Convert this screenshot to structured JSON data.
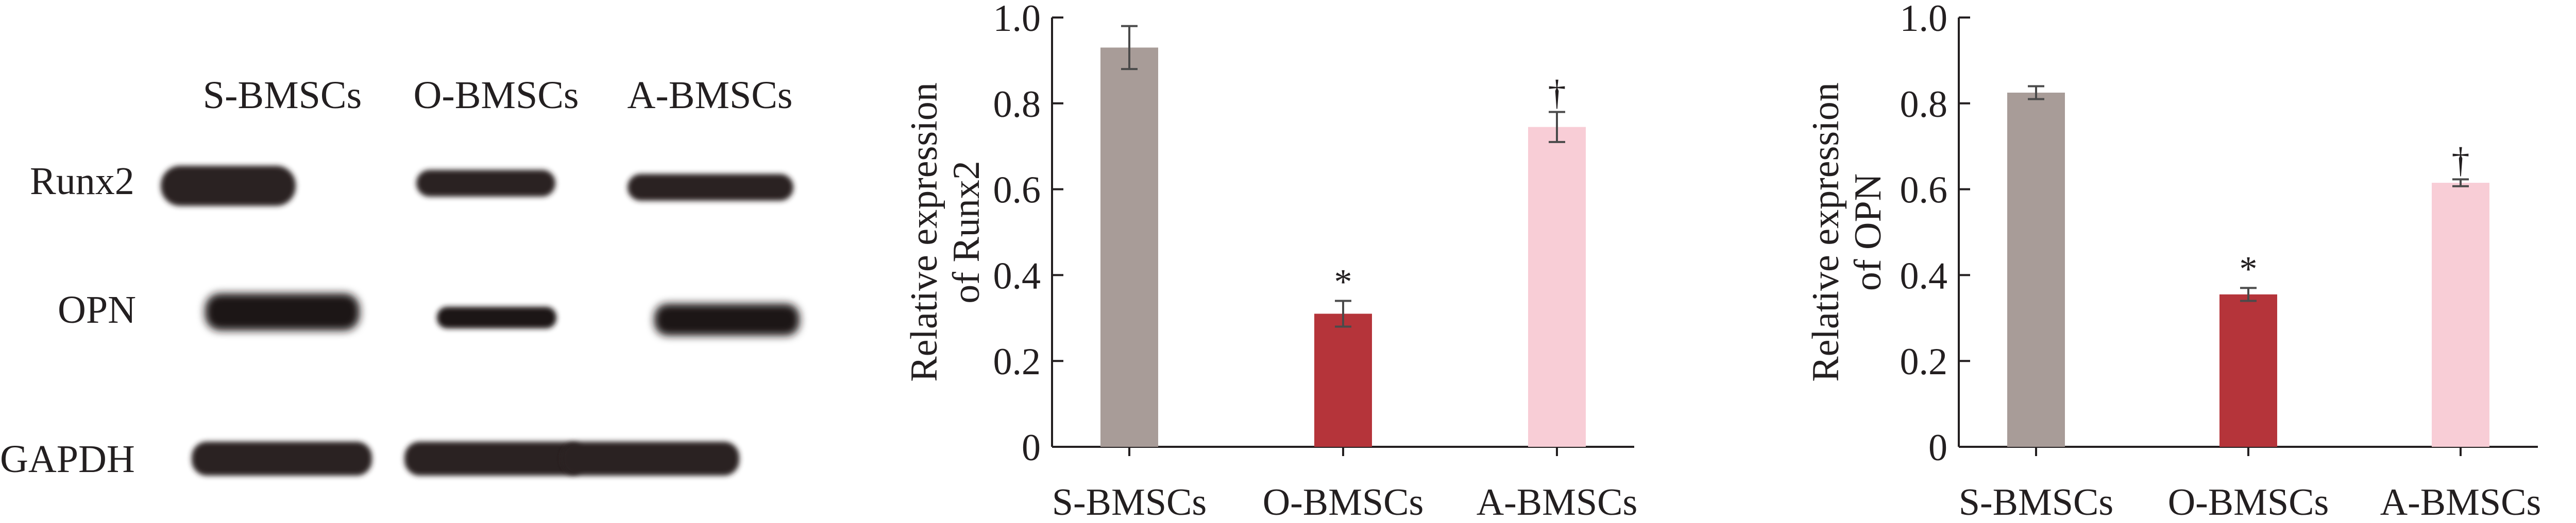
{
  "figure": {
    "blot": {
      "lane_labels": [
        "S-BMSCs",
        "O-BMSCs",
        "A-BMSCs"
      ],
      "row_labels": [
        "Runx2",
        "OPN",
        "GAPDH"
      ]
    },
    "colors": {
      "S-BMSCs": "#a89c98",
      "O-BMSCs": "#b5343a",
      "A-BMSCs": "#f8cdd6",
      "band": "#2a2422",
      "axis": "#231f20",
      "error_bar": "#4a4a4a"
    }
  },
  "chart_data": [
    {
      "type": "bar",
      "categories": [
        "S-BMSCs",
        "O-BMSCs",
        "A-BMSCs"
      ],
      "values": [
        0.93,
        0.31,
        0.745
      ],
      "errors": [
        0.05,
        0.03,
        0.035
      ],
      "annotations": [
        "",
        "*",
        "†"
      ],
      "title": "",
      "xlabel": "",
      "ylabel_lines": [
        "Relative expression",
        "of Runx2"
      ],
      "ylim": [
        0,
        1.0
      ],
      "yticks": [
        "0",
        "0.2",
        "0.4",
        "0.6",
        "0.8",
        "1.0"
      ],
      "grid": false
    },
    {
      "type": "bar",
      "categories": [
        "S-BMSCs",
        "O-BMSCs",
        "A-BMSCs"
      ],
      "values": [
        0.825,
        0.355,
        0.615
      ],
      "errors": [
        0.015,
        0.015,
        0.008
      ],
      "annotations": [
        "",
        "*",
        "†"
      ],
      "title": "",
      "xlabel": "",
      "ylabel_lines": [
        "Relative expression",
        "of OPN"
      ],
      "ylim": [
        0,
        1.0
      ],
      "yticks": [
        "0",
        "0.2",
        "0.4",
        "0.6",
        "0.8",
        "1.0"
      ],
      "grid": false
    }
  ]
}
